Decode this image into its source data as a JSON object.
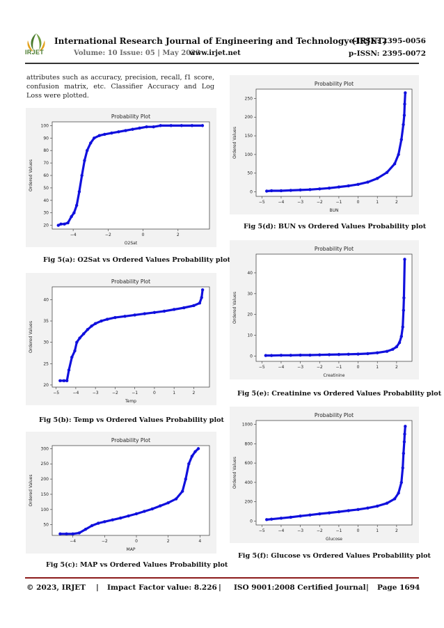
{
  "header": {
    "journal_title": "International Research Journal of Engineering and Technology (IRJET)",
    "eissn": "e-ISSN: 2395-0056",
    "volume": "Volume: 10 Issue: 05 | May 2023",
    "website": "www.irjet.net",
    "pissn": "p-ISSN: 2395-0072",
    "logo_text": "IRJET"
  },
  "body": {
    "paragraph": "attributes such as accuracy, precision, recall, f1 score, confusion matrix, etc. Classifier Accuracy and Log Loss were plotted."
  },
  "captions": {
    "a": "Fig 5(a): O2Sat vs Ordered Values Probability plot",
    "b": "Fig 5(b): Temp vs Ordered Values Probability plot",
    "c": "Fig 5(c): MAP vs Ordered Values Probability plot",
    "d": "Fig 5(d): BUN vs Ordered Values Probability plot",
    "e": "Fig 5(e): Creatinine vs Ordered Values Probability plot",
    "f": "Fig 5(f): Glucose vs Ordered Values Probability plot"
  },
  "footer": {
    "copyright": "© 2023, IRJET",
    "sep1": "|",
    "impact": "Impact Factor value: 8.226",
    "sep2": "|",
    "iso": "ISO 9001:2008 Certified Journal",
    "sep3": "|",
    "page": "Page 1694"
  },
  "colors": {
    "points": "#1010dd",
    "logo_green": "#4a7b2e"
  },
  "chart_data": [
    {
      "id": "a",
      "type": "scatter",
      "title": "Probability Plot",
      "xlabel": "O2Sat",
      "ylabel": "Ordered Values",
      "xlim": [
        -5.2,
        3.8
      ],
      "ylim": [
        17,
        103
      ],
      "xticks": [
        -4,
        -2,
        0,
        2
      ],
      "yticks": [
        20,
        30,
        40,
        50,
        60,
        70,
        80,
        90,
        100
      ],
      "x": [
        -4.85,
        -4.7,
        -4.5,
        -4.3,
        -4.1,
        -3.95,
        -3.8,
        -3.65,
        -3.5,
        -3.35,
        -3.2,
        -3.0,
        -2.8,
        -2.5,
        -2.2,
        -1.8,
        -1.4,
        -1.0,
        -0.6,
        -0.2,
        0.2,
        0.6,
        1.0,
        1.6,
        2.2,
        2.8,
        3.4
      ],
      "y": [
        20,
        21,
        21,
        22,
        27,
        30,
        36,
        47,
        60,
        72,
        80,
        86,
        90,
        92,
        93,
        94,
        95,
        96,
        97,
        98,
        99,
        99,
        100,
        100,
        100,
        100,
        100
      ]
    },
    {
      "id": "b",
      "type": "scatter",
      "title": "Probability Plot",
      "xlabel": "Temp",
      "ylabel": "Ordered Values",
      "xlim": [
        -5.2,
        2.8
      ],
      "ylim": [
        19.5,
        43
      ],
      "xticks": [
        -5,
        -4,
        -3,
        -2,
        -1,
        0,
        1,
        2
      ],
      "yticks": [
        20,
        25,
        30,
        35,
        40
      ],
      "x": [
        -4.8,
        -4.6,
        -4.45,
        -4.35,
        -4.2,
        -4.05,
        -3.95,
        -3.8,
        -3.6,
        -3.4,
        -3.2,
        -3.0,
        -2.7,
        -2.4,
        -2.0,
        -1.5,
        -1.0,
        -0.5,
        0.0,
        0.5,
        1.0,
        1.5,
        2.0,
        2.3,
        2.4,
        2.45
      ],
      "y": [
        21,
        21,
        21,
        23.5,
        26.5,
        28,
        30,
        31,
        32,
        33,
        33.8,
        34.4,
        35,
        35.4,
        35.8,
        36.1,
        36.4,
        36.7,
        37.0,
        37.3,
        37.7,
        38.1,
        38.6,
        39.2,
        40.5,
        42.3
      ]
    },
    {
      "id": "c",
      "type": "scatter",
      "title": "Probability Plot",
      "xlabel": "MAP",
      "ylabel": "Ordered Values",
      "xlim": [
        -5.3,
        4.6
      ],
      "ylim": [
        15,
        310
      ],
      "xticks": [
        -4,
        -2,
        0,
        2,
        4
      ],
      "yticks": [
        50,
        100,
        150,
        200,
        250,
        300
      ],
      "x": [
        -4.8,
        -4.4,
        -4.0,
        -3.6,
        -3.2,
        -2.8,
        -2.4,
        -2.0,
        -1.5,
        -1.0,
        -0.5,
        0.0,
        0.5,
        1.0,
        1.5,
        2.0,
        2.5,
        2.9,
        3.1,
        3.3,
        3.5,
        3.7,
        3.9
      ],
      "y": [
        20,
        20,
        20,
        23,
        35,
        47,
        55,
        60,
        66,
        72,
        79,
        86,
        94,
        102,
        112,
        122,
        135,
        160,
        200,
        250,
        275,
        290,
        300
      ]
    },
    {
      "id": "d",
      "type": "scatter",
      "title": "Probability Plot",
      "xlabel": "BUN",
      "ylabel": "Ordered Values",
      "xlim": [
        -5.3,
        2.8
      ],
      "ylim": [
        -12,
        275
      ],
      "xticks": [
        -5,
        -4,
        -3,
        -2,
        -1,
        0,
        1,
        2
      ],
      "yticks": [
        0,
        50,
        100,
        150,
        200,
        250
      ],
      "x": [
        -4.75,
        -4.5,
        -4.0,
        -3.5,
        -3.0,
        -2.5,
        -2.0,
        -1.5,
        -1.0,
        -0.5,
        0.0,
        0.5,
        1.0,
        1.5,
        1.9,
        2.1,
        2.25,
        2.35,
        2.4,
        2.42,
        2.45
      ],
      "y": [
        2,
        3,
        3,
        4,
        5,
        6,
        8,
        10,
        13,
        16,
        20,
        26,
        36,
        52,
        75,
        100,
        140,
        180,
        205,
        235,
        265
      ]
    },
    {
      "id": "e",
      "type": "scatter",
      "title": "Probability Plot",
      "xlabel": "Creatinine",
      "ylabel": "Ordered Values",
      "xlim": [
        -5.3,
        2.8
      ],
      "ylim": [
        -2.5,
        49
      ],
      "xticks": [
        -5,
        -4,
        -3,
        -2,
        -1,
        0,
        1,
        2
      ],
      "yticks": [
        0,
        10,
        20,
        30,
        40
      ],
      "x": [
        -4.8,
        -4.5,
        -4.0,
        -3.5,
        -3.0,
        -2.5,
        -2.0,
        -1.5,
        -1.0,
        -0.5,
        0.0,
        0.5,
        1.0,
        1.5,
        1.8,
        2.0,
        2.15,
        2.25,
        2.32,
        2.36,
        2.38,
        2.42
      ],
      "y": [
        0.3,
        0.3,
        0.4,
        0.4,
        0.5,
        0.5,
        0.6,
        0.7,
        0.8,
        0.9,
        1.0,
        1.2,
        1.6,
        2.3,
        3.3,
        4.5,
        6.5,
        9.5,
        14,
        22,
        28,
        46.5
      ]
    },
    {
      "id": "f",
      "type": "scatter",
      "title": "Probability Plot",
      "xlabel": "Glucose",
      "ylabel": "Ordered Values",
      "xlim": [
        -5.3,
        2.8
      ],
      "ylim": [
        -40,
        1040
      ],
      "xticks": [
        -5,
        -4,
        -3,
        -2,
        -1,
        0,
        1,
        2
      ],
      "yticks": [
        0,
        200,
        400,
        600,
        800,
        1000
      ],
      "x": [
        -4.75,
        -4.5,
        -4.0,
        -3.5,
        -3.0,
        -2.5,
        -2.0,
        -1.5,
        -1.0,
        -0.5,
        0.0,
        0.5,
        1.0,
        1.5,
        1.9,
        2.1,
        2.25,
        2.32,
        2.36,
        2.4,
        2.42,
        2.45
      ],
      "y": [
        15,
        20,
        30,
        40,
        52,
        63,
        75,
        85,
        96,
        108,
        120,
        135,
        155,
        185,
        230,
        290,
        400,
        550,
        700,
        820,
        900,
        980
      ]
    }
  ]
}
